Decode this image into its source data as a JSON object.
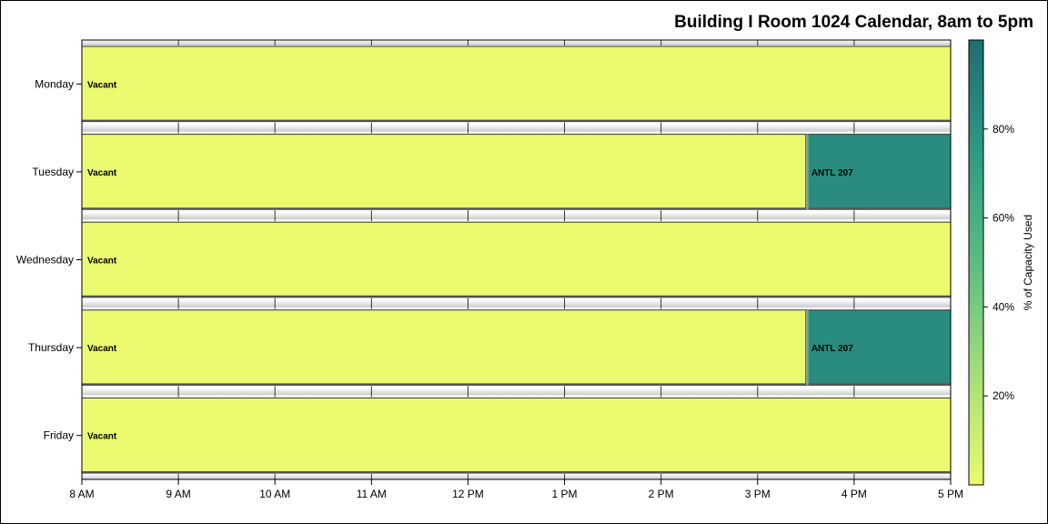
{
  "chart_data": {
    "type": "bar",
    "title": "Building I Room 1024 Calendar, 8am to 5pm",
    "xlabel": "",
    "ylabel": "",
    "orientation": "horizontal",
    "x_range": [
      8,
      17
    ],
    "x_ticks": [
      {
        "value": 8,
        "label": "8 AM"
      },
      {
        "value": 9,
        "label": "9 AM"
      },
      {
        "value": 10,
        "label": "10 AM"
      },
      {
        "value": 11,
        "label": "11 AM"
      },
      {
        "value": 12,
        "label": "12 PM"
      },
      {
        "value": 13,
        "label": "1 PM"
      },
      {
        "value": 14,
        "label": "2 PM"
      },
      {
        "value": 15,
        "label": "3 PM"
      },
      {
        "value": 16,
        "label": "4 PM"
      },
      {
        "value": 17,
        "label": "5 PM"
      }
    ],
    "categories": [
      "Monday",
      "Tuesday",
      "Wednesday",
      "Thursday",
      "Friday"
    ],
    "segments": [
      {
        "day": "Monday",
        "start": 8,
        "end": 17,
        "label": "Vacant",
        "capacity_pct": 0
      },
      {
        "day": "Tuesday",
        "start": 8,
        "end": 15.5,
        "label": "Vacant",
        "capacity_pct": 0
      },
      {
        "day": "Tuesday",
        "start": 15.5,
        "end": 17,
        "label": "ANTL 207",
        "capacity_pct": 83
      },
      {
        "day": "Wednesday",
        "start": 8,
        "end": 17,
        "label": "Vacant",
        "capacity_pct": 0
      },
      {
        "day": "Thursday",
        "start": 8,
        "end": 15.5,
        "label": "Vacant",
        "capacity_pct": 0
      },
      {
        "day": "Thursday",
        "start": 15.5,
        "end": 17,
        "label": "ANTL 207",
        "capacity_pct": 83
      },
      {
        "day": "Friday",
        "start": 8,
        "end": 17,
        "label": "Vacant",
        "capacity_pct": 0
      }
    ],
    "colorbar": {
      "label": "% of Capacity Used",
      "range": [
        0,
        100
      ],
      "ticks": [
        {
          "value": 20,
          "label": "20%"
        },
        {
          "value": 40,
          "label": "40%"
        },
        {
          "value": 60,
          "label": "60%"
        },
        {
          "value": 80,
          "label": "80%"
        }
      ],
      "colors": [
        "#ebfa6e",
        "#a4de7a",
        "#5bbd82",
        "#2f9a83",
        "#1f6d72"
      ],
      "placement": "right"
    },
    "grid": true
  }
}
